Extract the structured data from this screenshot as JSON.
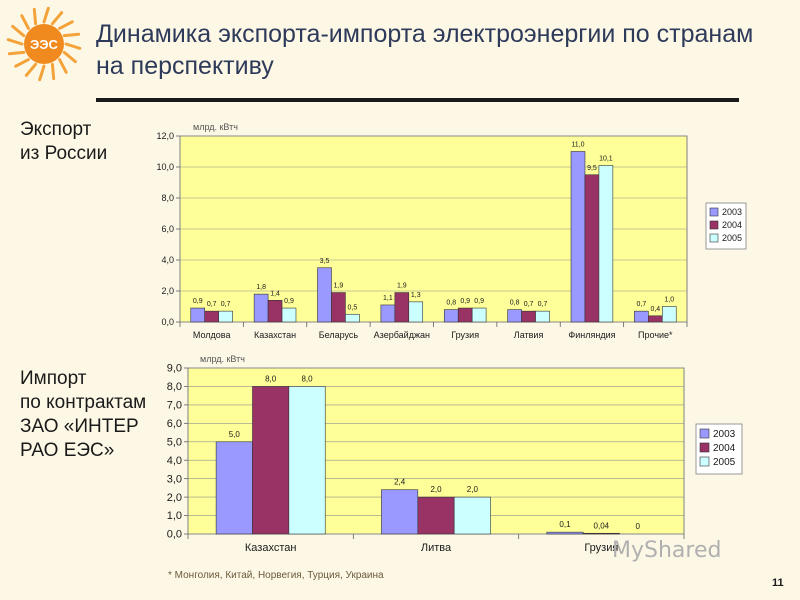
{
  "title": "Динамика экспорта-импорта электроэнергии по странам на перспективу",
  "logo_text": "ЭЭС",
  "export_label": [
    "Экспорт",
    "из России"
  ],
  "import_label": [
    "Импорт",
    "по контрактам",
    "ЗАО «ИНТЕР",
    "РАО ЕЭС»"
  ],
  "footnote": "* Монголия, Китай, Норвегия, Турция, Украина",
  "page_number": "11",
  "watermark": "MyShared",
  "colors": {
    "2003": "#9999ff",
    "2004": "#993366",
    "2005": "#ccffff",
    "plot_bg": "#ffff99",
    "legend_bg": "#ffffff"
  },
  "chart_data": [
    {
      "type": "bar",
      "unit_label": "млрд. кВтч",
      "categories": [
        "Молдова",
        "Казахстан",
        "Беларусь",
        "Азербайджан",
        "Грузия",
        "Латвия",
        "Финляндия",
        "Прочие*"
      ],
      "series": [
        {
          "name": "2003",
          "values": [
            0.9,
            1.8,
            3.5,
            1.1,
            0.8,
            0.8,
            11.0,
            0.7
          ],
          "labels": [
            "0,9",
            "1,8",
            "3,5",
            "1,1",
            "0,8",
            "0,8",
            "11,0",
            "0,7"
          ]
        },
        {
          "name": "2004",
          "values": [
            0.7,
            1.4,
            1.9,
            1.9,
            0.9,
            0.7,
            9.5,
            0.4
          ],
          "labels": [
            "0,7",
            "1,4",
            "1,9",
            "1,9",
            "0,9",
            "0,7",
            "9,5",
            "0,4"
          ]
        },
        {
          "name": "2005",
          "values": [
            0.7,
            0.9,
            0.5,
            1.3,
            0.9,
            0.7,
            10.1,
            1.0
          ],
          "labels": [
            "0,7",
            "0,9",
            "0,5",
            "1,3",
            "0,9",
            "0,7",
            "10,1",
            "1,0"
          ]
        }
      ],
      "yticks": [
        "0,0",
        "2,0",
        "4,0",
        "6,0",
        "8,0",
        "10,0",
        "12,0"
      ],
      "ylim": [
        0,
        12
      ],
      "grid": true,
      "legend": "right"
    },
    {
      "type": "bar",
      "unit_label": "млрд. кВтч",
      "categories": [
        "Казахстан",
        "Литва",
        "Грузия"
      ],
      "series": [
        {
          "name": "2003",
          "values": [
            5.0,
            2.4,
            0.1
          ],
          "labels": [
            "5,0",
            "2,4",
            "0,1"
          ]
        },
        {
          "name": "2004",
          "values": [
            8.0,
            2.0,
            0.04
          ],
          "labels": [
            "8,0",
            "2,0",
            "0,04"
          ]
        },
        {
          "name": "2005",
          "values": [
            8.0,
            2.0,
            0
          ],
          "labels": [
            "8,0",
            "2,0",
            "0"
          ]
        }
      ],
      "yticks": [
        "0,0",
        "1,0",
        "2,0",
        "3,0",
        "4,0",
        "5,0",
        "6,0",
        "7,0",
        "8,0",
        "9,0"
      ],
      "ylim": [
        0,
        9
      ],
      "grid": true,
      "legend": "right"
    }
  ]
}
